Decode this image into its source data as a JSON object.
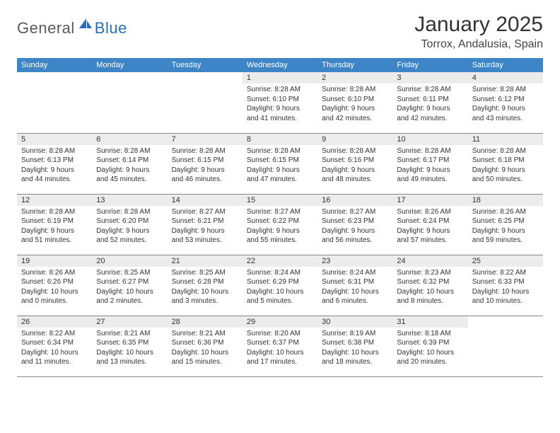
{
  "logo": {
    "text1": "General",
    "text2": "Blue"
  },
  "title": "January 2025",
  "location": "Torrox, Andalusia, Spain",
  "colors": {
    "header_bg": "#3d85c6",
    "header_fg": "#ffffff",
    "daynum_bg": "#ececec",
    "border": "#888888",
    "logo_gray": "#5a5a5a",
    "logo_blue": "#2a6fb5"
  },
  "daysOfWeek": [
    "Sunday",
    "Monday",
    "Tuesday",
    "Wednesday",
    "Thursday",
    "Friday",
    "Saturday"
  ],
  "weeks": [
    [
      {
        "blank": true
      },
      {
        "blank": true
      },
      {
        "blank": true
      },
      {
        "n": "1",
        "sr": "8:28 AM",
        "ss": "6:10 PM",
        "dl": "9 hours and 41 minutes."
      },
      {
        "n": "2",
        "sr": "8:28 AM",
        "ss": "6:10 PM",
        "dl": "9 hours and 42 minutes."
      },
      {
        "n": "3",
        "sr": "8:28 AM",
        "ss": "6:11 PM",
        "dl": "9 hours and 42 minutes."
      },
      {
        "n": "4",
        "sr": "8:28 AM",
        "ss": "6:12 PM",
        "dl": "9 hours and 43 minutes."
      }
    ],
    [
      {
        "n": "5",
        "sr": "8:28 AM",
        "ss": "6:13 PM",
        "dl": "9 hours and 44 minutes."
      },
      {
        "n": "6",
        "sr": "8:28 AM",
        "ss": "6:14 PM",
        "dl": "9 hours and 45 minutes."
      },
      {
        "n": "7",
        "sr": "8:28 AM",
        "ss": "6:15 PM",
        "dl": "9 hours and 46 minutes."
      },
      {
        "n": "8",
        "sr": "8:28 AM",
        "ss": "6:15 PM",
        "dl": "9 hours and 47 minutes."
      },
      {
        "n": "9",
        "sr": "8:28 AM",
        "ss": "6:16 PM",
        "dl": "9 hours and 48 minutes."
      },
      {
        "n": "10",
        "sr": "8:28 AM",
        "ss": "6:17 PM",
        "dl": "9 hours and 49 minutes."
      },
      {
        "n": "11",
        "sr": "8:28 AM",
        "ss": "6:18 PM",
        "dl": "9 hours and 50 minutes."
      }
    ],
    [
      {
        "n": "12",
        "sr": "8:28 AM",
        "ss": "6:19 PM",
        "dl": "9 hours and 51 minutes."
      },
      {
        "n": "13",
        "sr": "8:28 AM",
        "ss": "6:20 PM",
        "dl": "9 hours and 52 minutes."
      },
      {
        "n": "14",
        "sr": "8:27 AM",
        "ss": "6:21 PM",
        "dl": "9 hours and 53 minutes."
      },
      {
        "n": "15",
        "sr": "8:27 AM",
        "ss": "6:22 PM",
        "dl": "9 hours and 55 minutes."
      },
      {
        "n": "16",
        "sr": "8:27 AM",
        "ss": "6:23 PM",
        "dl": "9 hours and 56 minutes."
      },
      {
        "n": "17",
        "sr": "8:26 AM",
        "ss": "6:24 PM",
        "dl": "9 hours and 57 minutes."
      },
      {
        "n": "18",
        "sr": "8:26 AM",
        "ss": "6:25 PM",
        "dl": "9 hours and 59 minutes."
      }
    ],
    [
      {
        "n": "19",
        "sr": "8:26 AM",
        "ss": "6:26 PM",
        "dl": "10 hours and 0 minutes."
      },
      {
        "n": "20",
        "sr": "8:25 AM",
        "ss": "6:27 PM",
        "dl": "10 hours and 2 minutes."
      },
      {
        "n": "21",
        "sr": "8:25 AM",
        "ss": "6:28 PM",
        "dl": "10 hours and 3 minutes."
      },
      {
        "n": "22",
        "sr": "8:24 AM",
        "ss": "6:29 PM",
        "dl": "10 hours and 5 minutes."
      },
      {
        "n": "23",
        "sr": "8:24 AM",
        "ss": "6:31 PM",
        "dl": "10 hours and 6 minutes."
      },
      {
        "n": "24",
        "sr": "8:23 AM",
        "ss": "6:32 PM",
        "dl": "10 hours and 8 minutes."
      },
      {
        "n": "25",
        "sr": "8:22 AM",
        "ss": "6:33 PM",
        "dl": "10 hours and 10 minutes."
      }
    ],
    [
      {
        "n": "26",
        "sr": "8:22 AM",
        "ss": "6:34 PM",
        "dl": "10 hours and 11 minutes."
      },
      {
        "n": "27",
        "sr": "8:21 AM",
        "ss": "6:35 PM",
        "dl": "10 hours and 13 minutes."
      },
      {
        "n": "28",
        "sr": "8:21 AM",
        "ss": "6:36 PM",
        "dl": "10 hours and 15 minutes."
      },
      {
        "n": "29",
        "sr": "8:20 AM",
        "ss": "6:37 PM",
        "dl": "10 hours and 17 minutes."
      },
      {
        "n": "30",
        "sr": "8:19 AM",
        "ss": "6:38 PM",
        "dl": "10 hours and 18 minutes."
      },
      {
        "n": "31",
        "sr": "8:18 AM",
        "ss": "6:39 PM",
        "dl": "10 hours and 20 minutes."
      },
      {
        "blank": true
      }
    ]
  ],
  "labels": {
    "sunrise": "Sunrise:",
    "sunset": "Sunset:",
    "daylight": "Daylight:"
  }
}
